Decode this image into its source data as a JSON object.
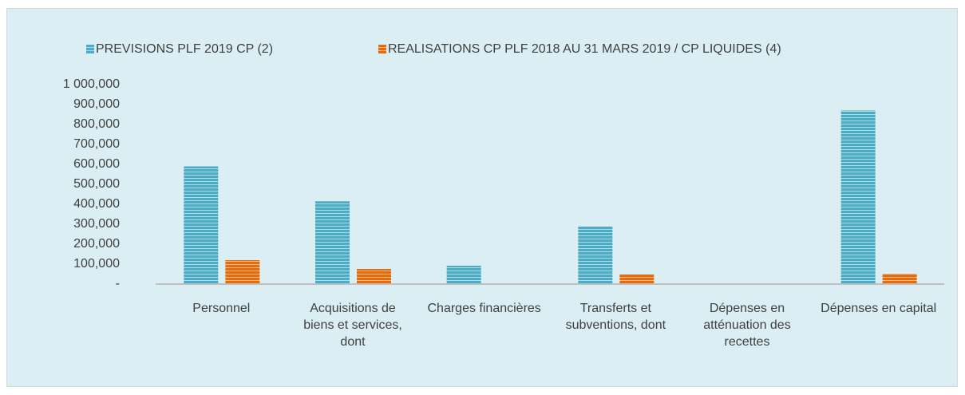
{
  "chart_data": {
    "type": "bar",
    "categories": [
      "Personnel",
      "Acquisitions de biens et services, dont",
      "Charges financières",
      "Transferts et subventions, dont",
      "Dépenses en atténuation des recettes",
      "Dépenses en capital"
    ],
    "series": [
      {
        "name": "PREVISIONS PLF 2019 CP (2)",
        "color": "#4bacc6",
        "values": [
          590000,
          415000,
          92000,
          288000,
          0,
          870000
        ]
      },
      {
        "name": "REALISATIONS CP PLF 2018 AU 31 MARS 2019 / CP LIQUIDES (4)",
        "color": "#e46c0a",
        "values": [
          120000,
          76000,
          0,
          48000,
          0,
          52000
        ]
      }
    ],
    "ylim": [
      0,
      1000000
    ],
    "yticks": [
      {
        "value": 0,
        "label": "-"
      },
      {
        "value": 100000,
        "label": "100,000"
      },
      {
        "value": 200000,
        "label": "200,000"
      },
      {
        "value": 300000,
        "label": "300,000"
      },
      {
        "value": 400000,
        "label": "400,000"
      },
      {
        "value": 500000,
        "label": "500,000"
      },
      {
        "value": 600000,
        "label": "600,000"
      },
      {
        "value": 700000,
        "label": "700,000"
      },
      {
        "value": 800000,
        "label": "800,000"
      },
      {
        "value": 900000,
        "label": "900,000"
      },
      {
        "value": 1000000,
        "label": "1 000,000"
      }
    ],
    "grid": false,
    "legend": "top"
  }
}
